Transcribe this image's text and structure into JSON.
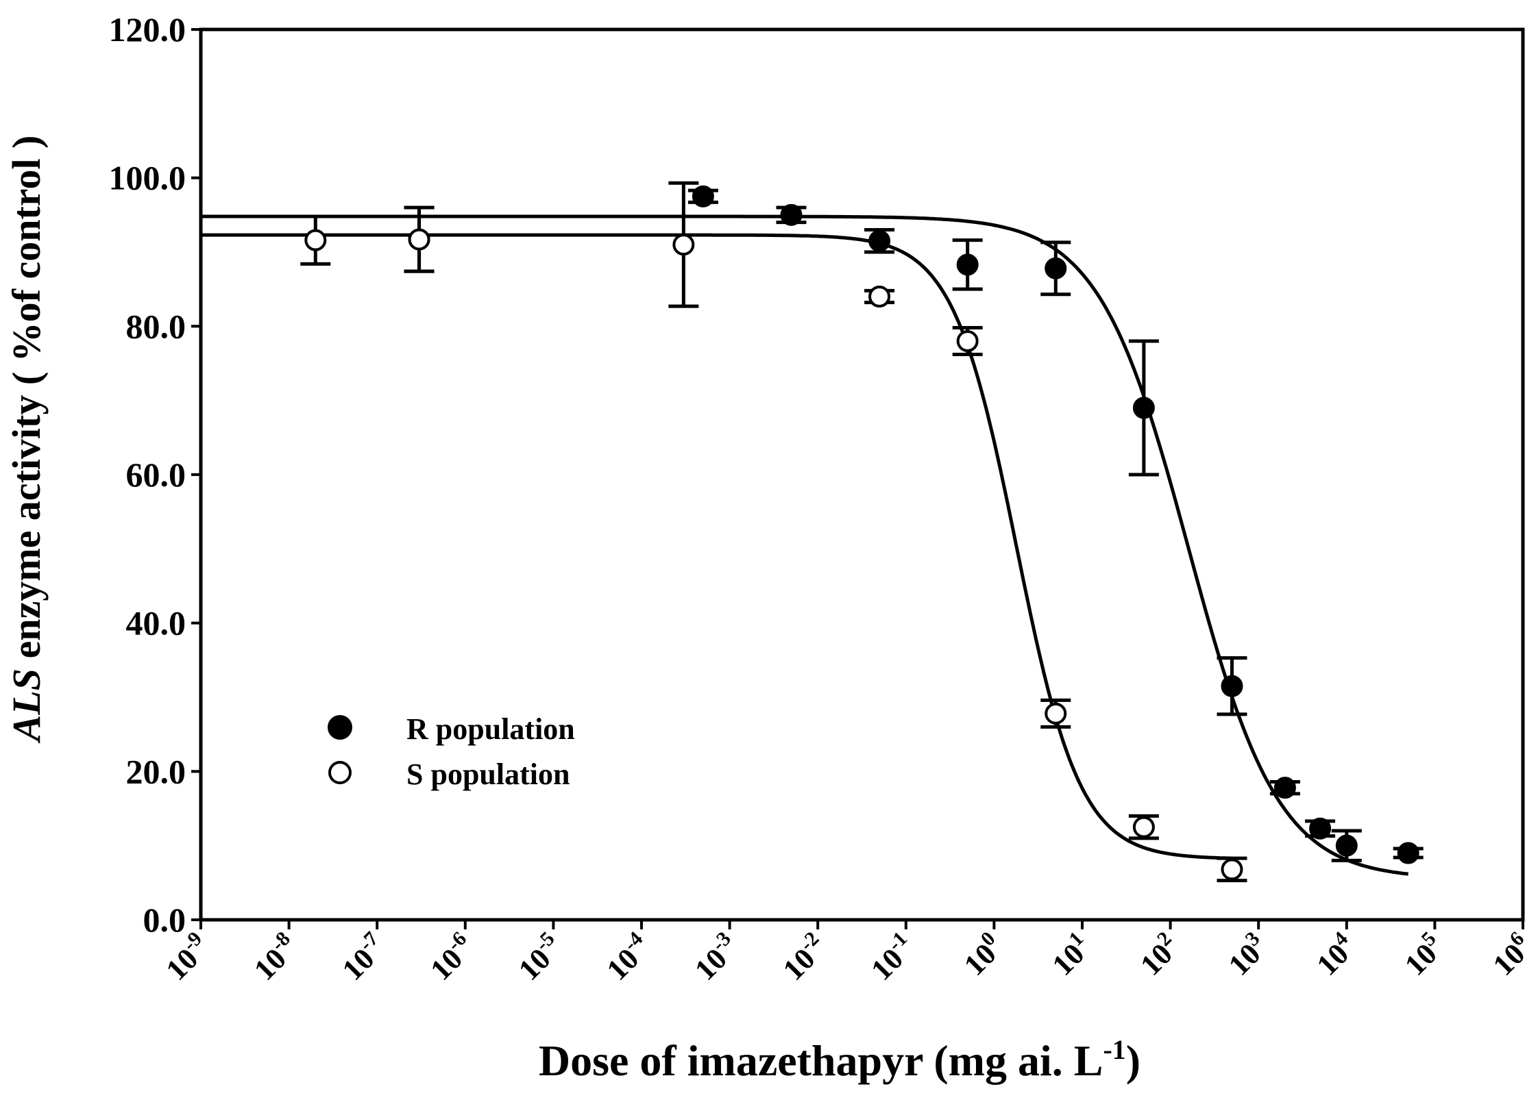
{
  "chart_data": {
    "type": "scatter",
    "title": "",
    "xlabel": "Dose of imazethapyr (mg ai. L",
    "xlabel_superscript": "-1",
    "xlabel_suffix": ")",
    "ylabel_italic": "ALS",
    "ylabel": " enzyme activity ( %of control )",
    "x_scale": "log",
    "xlim_exponents": [
      -9,
      6
    ],
    "x_tick_base": "10",
    "x_tick_exponents": [
      -9,
      -8,
      -7,
      -6,
      -5,
      -4,
      -3,
      -2,
      -1,
      0,
      1,
      2,
      3,
      4,
      5,
      6
    ],
    "ylim": [
      0,
      120
    ],
    "y_ticks": [
      0,
      20,
      40,
      60,
      80,
      100,
      120
    ],
    "y_tick_labels": [
      "0.0",
      "20.0",
      "40.0",
      "60.0",
      "80.0",
      "100.0",
      "120.0"
    ],
    "grid": false,
    "legend_position": "lower-left",
    "series": [
      {
        "name": "R population",
        "marker": "filled-circle",
        "color": "#000000",
        "points": [
          {
            "x": 0.0005,
            "y": 97.5,
            "err": 0.8
          },
          {
            "x": 0.005,
            "y": 95.0,
            "err": 1.0
          },
          {
            "x": 0.05,
            "y": 91.5,
            "err": 1.5
          },
          {
            "x": 0.5,
            "y": 88.3,
            "err": 3.3
          },
          {
            "x": 5,
            "y": 87.8,
            "err": 3.5
          },
          {
            "x": 50,
            "y": 69.0,
            "err": 9.0
          },
          {
            "x": 500,
            "y": 31.5,
            "err": 3.8
          },
          {
            "x": 2000,
            "y": 17.8,
            "err": 0.8
          },
          {
            "x": 5000,
            "y": 12.3,
            "err": 1.0
          },
          {
            "x": 10000,
            "y": 10.0,
            "err": 2.0
          },
          {
            "x": 50000,
            "y": 9.0,
            "err": 0.6
          }
        ],
        "fit": {
          "model": "log-logistic",
          "top": 94.8,
          "bottom": 5.5,
          "ec50": 160,
          "slope": 0.85,
          "x_start": 1e-09,
          "x_end": 50000
        }
      },
      {
        "name": "S population",
        "marker": "open-circle",
        "color": "#000000",
        "points": [
          {
            "x": 2e-08,
            "y": 91.6,
            "err": 3.2
          },
          {
            "x": 3e-07,
            "y": 91.7,
            "err": 4.3
          },
          {
            "x": 3e-07,
            "y": 91.7,
            "err": 4.3
          },
          {
            "x": 0.0003,
            "y": 91.0,
            "err": 8.3
          },
          {
            "x": 0.05,
            "y": 84.0,
            "err": 0.8
          },
          {
            "x": 0.5,
            "y": 78.0,
            "err": 1.8
          },
          {
            "x": 5,
            "y": 27.8,
            "err": 1.8
          },
          {
            "x": 50,
            "y": 12.5,
            "err": 1.5
          },
          {
            "x": 500,
            "y": 6.8,
            "err": 1.5
          }
        ],
        "fit": {
          "model": "log-logistic",
          "top": 92.3,
          "bottom": 8.2,
          "ec50": 1.8,
          "slope": 1.2,
          "x_start": 1e-09,
          "x_end": 500
        }
      }
    ]
  }
}
